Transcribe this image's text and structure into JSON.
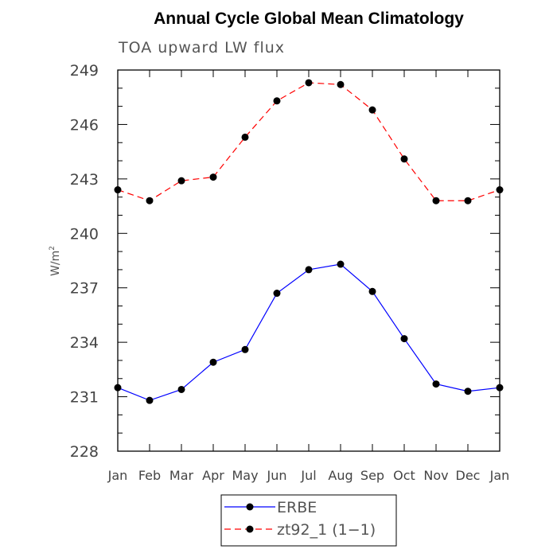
{
  "chart_data": {
    "type": "line",
    "title": "Annual Cycle Global Mean Climatology",
    "subtitle": "TOA upward LW flux",
    "ylabel": "W/m",
    "ylabel_sup": "2",
    "xlabel": "",
    "categories": [
      "Jan",
      "Feb",
      "Mar",
      "Apr",
      "May",
      "Jun",
      "Jul",
      "Aug",
      "Sep",
      "Oct",
      "Nov",
      "Dec",
      "Jan"
    ],
    "ylim": [
      228,
      249
    ],
    "yticks": [
      228,
      231,
      234,
      237,
      240,
      243,
      246,
      249
    ],
    "yminor_step": 1,
    "grid": false,
    "legend_position": "bottom-center",
    "series": [
      {
        "name": "ERBE",
        "color": "#0000ff",
        "line_style": "solid",
        "marker": "filled-circle",
        "values": [
          231.5,
          230.8,
          231.4,
          232.9,
          233.6,
          236.7,
          238.0,
          238.3,
          236.8,
          234.2,
          231.7,
          231.3,
          231.5
        ]
      },
      {
        "name": "zt92_1 (1−1)",
        "color": "#ff0000",
        "line_style": "dashed",
        "marker": "filled-circle",
        "values": [
          242.4,
          241.8,
          242.9,
          243.1,
          245.3,
          247.3,
          248.3,
          248.2,
          246.8,
          244.1,
          241.8,
          241.8,
          242.4
        ]
      }
    ]
  }
}
